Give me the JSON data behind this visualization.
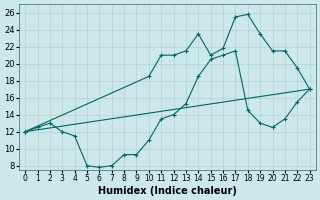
{
  "xlabel": "Humidex (Indice chaleur)",
  "bg_color": "#cce8e8",
  "line_color": "#006666",
  "xlim": [
    -0.5,
    23.5
  ],
  "ylim": [
    7.5,
    27
  ],
  "yticks": [
    8,
    10,
    12,
    14,
    16,
    18,
    20,
    22,
    24,
    26
  ],
  "xticks": [
    0,
    1,
    2,
    3,
    4,
    5,
    6,
    7,
    8,
    9,
    10,
    11,
    12,
    13,
    14,
    15,
    16,
    17,
    18,
    19,
    20,
    21,
    22,
    23
  ],
  "line1_x": [
    0,
    1,
    2,
    3,
    4,
    5,
    6,
    7,
    8,
    9,
    10,
    11,
    12,
    13,
    14,
    15,
    16,
    17,
    18,
    19,
    20,
    21,
    22,
    23
  ],
  "line1_y": [
    12.0,
    12.5,
    13.0,
    12.0,
    11.5,
    8.0,
    7.8,
    8.0,
    9.3,
    9.3,
    11.0,
    13.5,
    14.0,
    15.3,
    18.5,
    20.5,
    21.0,
    21.5,
    14.5,
    13.0,
    12.5,
    13.5,
    15.5,
    17.0
  ],
  "line2_x": [
    0,
    23
  ],
  "line2_y": [
    12.0,
    17.0
  ],
  "line3_x": [
    0,
    10,
    11,
    12,
    13,
    14,
    15,
    16,
    17,
    18,
    19,
    20,
    21,
    22,
    23
  ],
  "line3_y": [
    12.0,
    18.5,
    21.0,
    21.0,
    21.5,
    23.5,
    21.0,
    21.8,
    25.5,
    25.8,
    23.5,
    21.5,
    21.5,
    19.5,
    17.0
  ]
}
